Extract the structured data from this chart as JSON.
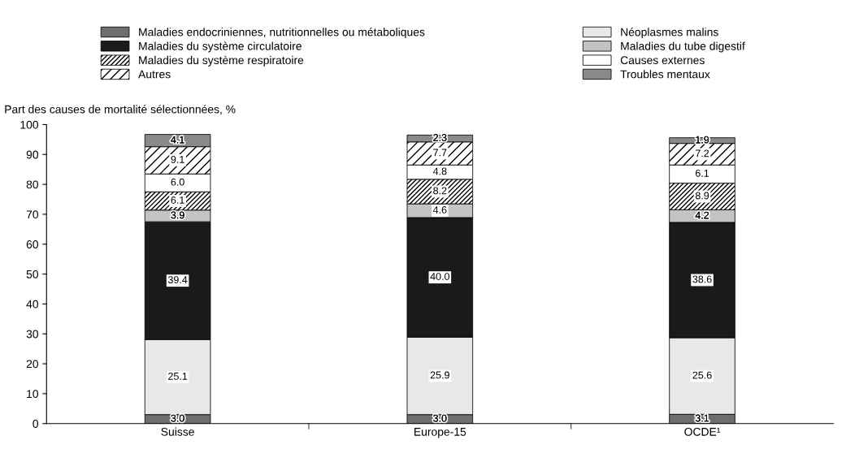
{
  "chart_data": {
    "type": "bar",
    "stacked": true,
    "ylabel": "Part des causes de mortalité sélectionnées, %",
    "categories": [
      "Suisse",
      "Europe-15",
      "OCDE¹"
    ],
    "series": [
      {
        "name": "Maladies endocriniennes, nutritionnelles ou métaboliques",
        "color": "#6e6e6e",
        "values": [
          3.0,
          3.0,
          3.1
        ],
        "value_labels": [
          "3.0",
          "3.0",
          "3.1"
        ]
      },
      {
        "name": "Néoplasmes malins",
        "color": "#e8e8e8",
        "values": [
          25.1,
          25.9,
          25.6
        ]
      },
      {
        "name": "Maladies du système circulatoire",
        "color": "#1a1a1a",
        "values": [
          39.4,
          40.0,
          38.6
        ],
        "value_labels": [
          "39.4",
          "40.0",
          "38.6"
        ]
      },
      {
        "name": "Maladies du tube digestif",
        "color": "#c3c3c3",
        "values": [
          3.9,
          4.6,
          4.2
        ]
      },
      {
        "name": "Maladies du système respiratoire",
        "color": "#000000",
        "values": [
          6.1,
          8.2,
          8.9
        ]
      },
      {
        "name": "Causes externes",
        "color": "#ffffff",
        "values": [
          6.0,
          4.8,
          6.1
        ],
        "value_labels": [
          "6.0",
          "4.8",
          "6.1"
        ]
      },
      {
        "name": "Autres",
        "color": "#000000",
        "values": [
          9.1,
          7.7,
          7.2
        ]
      },
      {
        "name": "Troubles mentaux",
        "color": "#8a8a8a",
        "values": [
          4.1,
          2.3,
          1.9
        ]
      }
    ],
    "ylim": [
      0,
      100
    ],
    "yticks": [
      0,
      10,
      20,
      30,
      40,
      50,
      60,
      70,
      80,
      90,
      100
    ],
    "data_labels": true,
    "grid": false,
    "legend": "top"
  }
}
